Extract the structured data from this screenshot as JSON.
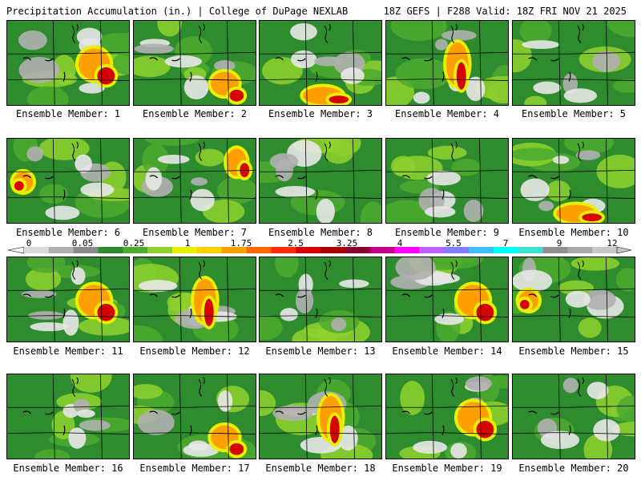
{
  "header": {
    "left": "Precipitation Accumulation (in.) | College of DuPage NEXLAB",
    "right": "18Z GEFS | F288 Valid: 18Z FRI NOV 21 2025"
  },
  "colorbar": {
    "labels": [
      "0",
      "0.05",
      "0.25",
      "1",
      "1.75",
      "2.5",
      "3.25",
      "4",
      "5.5",
      "7",
      "9",
      "12"
    ],
    "colors": [
      "#d9d9d9",
      "#b0b0b0",
      "#8a8a8a",
      "#2e8b2e",
      "#4caa2e",
      "#8fd12e",
      "#e8f000",
      "#ffd000",
      "#ffa000",
      "#ff6a00",
      "#ff2a00",
      "#d60000",
      "#a80000",
      "#8a0030",
      "#c0008a",
      "#ff00ff",
      "#c060ff",
      "#8080ff",
      "#40c0ff",
      "#00ffff",
      "#40e0d0",
      "#909090",
      "#a8a8a8",
      "#c8c8c8"
    ]
  },
  "members": [
    {
      "label": "Ensemble Member: 1",
      "hot": "east"
    },
    {
      "label": "Ensemble Member: 2",
      "hot": "southeast"
    },
    {
      "label": "Ensemble Member: 3",
      "hot": "south"
    },
    {
      "label": "Ensemble Member: 4",
      "hot": "center"
    },
    {
      "label": "Ensemble Member: 5",
      "hot": "none"
    },
    {
      "label": "Ensemble Member: 6",
      "hot": "west"
    },
    {
      "label": "Ensemble Member: 7",
      "hot": "northeast"
    },
    {
      "label": "Ensemble Member: 8",
      "hot": "none"
    },
    {
      "label": "Ensemble Member: 9",
      "hot": "none"
    },
    {
      "label": "Ensemble Member: 10",
      "hot": "south"
    },
    {
      "label": "Ensemble Member: 11",
      "hot": "east"
    },
    {
      "label": "Ensemble Member: 12",
      "hot": "center"
    },
    {
      "label": "Ensemble Member: 13",
      "hot": "none"
    },
    {
      "label": "Ensemble Member: 14",
      "hot": "east"
    },
    {
      "label": "Ensemble Member: 15",
      "hot": "west"
    },
    {
      "label": "Ensemble Member: 16",
      "hot": "none"
    },
    {
      "label": "Ensemble Member: 17",
      "hot": "southeast"
    },
    {
      "label": "Ensemble Member: 18",
      "hot": "center"
    },
    {
      "label": "Ensemble Member: 19",
      "hot": "east"
    },
    {
      "label": "Ensemble Member: 20",
      "hot": "none"
    }
  ]
}
